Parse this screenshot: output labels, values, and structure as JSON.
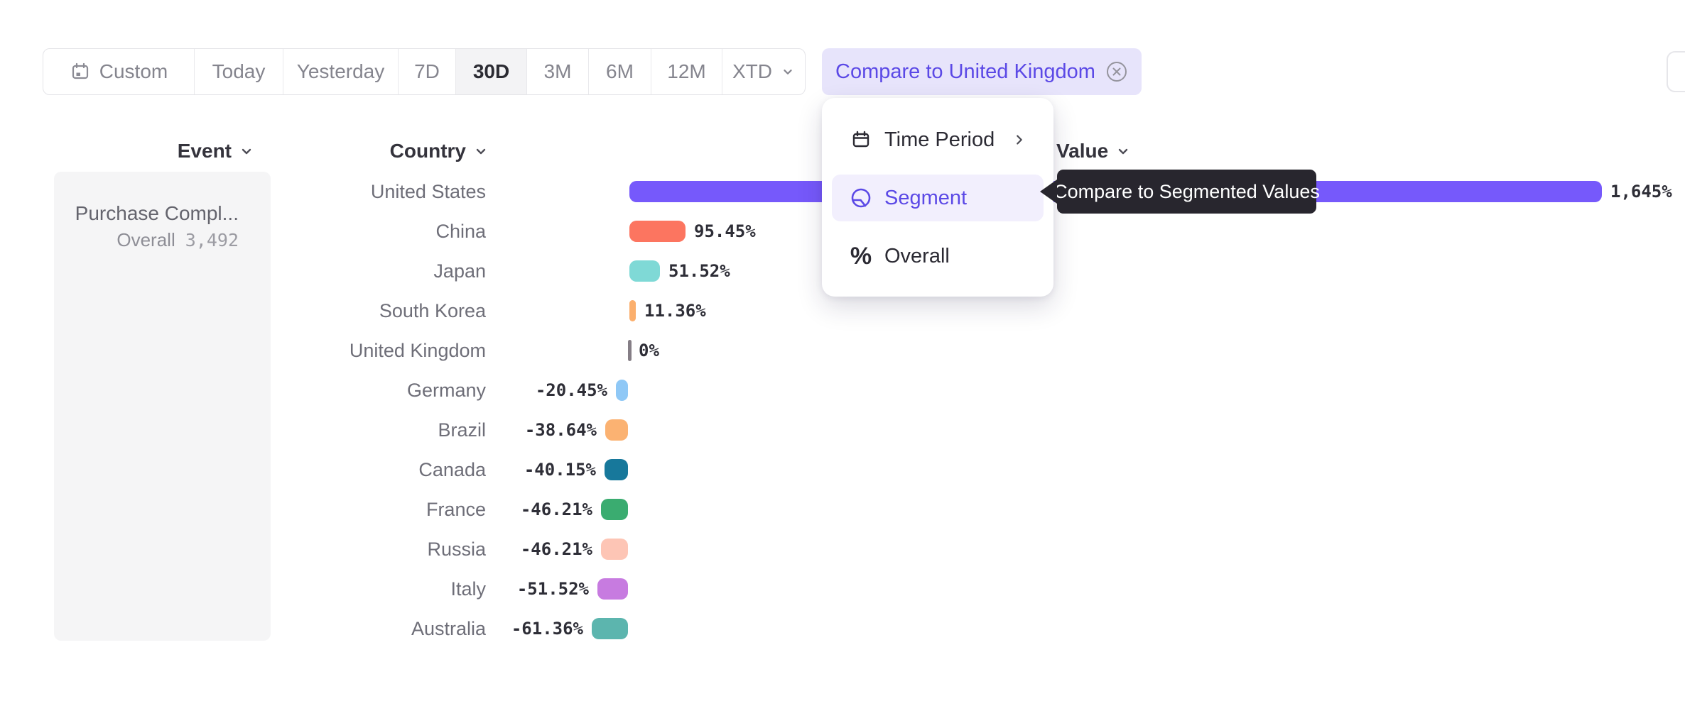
{
  "toolbar": {
    "custom_label": "Custom",
    "ranges": [
      {
        "label": "Today",
        "selected": false
      },
      {
        "label": "Yesterday",
        "selected": false
      },
      {
        "label": "7D",
        "selected": false
      },
      {
        "label": "30D",
        "selected": true
      },
      {
        "label": "3M",
        "selected": false
      },
      {
        "label": "6M",
        "selected": false
      },
      {
        "label": "12M",
        "selected": false
      }
    ],
    "xtd_label": "XTD",
    "compare_chip": {
      "label": "Compare to United Kingdom"
    }
  },
  "columns": {
    "event": "Event",
    "country": "Country",
    "value": "Value"
  },
  "event_panel": {
    "event_name": "Purchase Compl...",
    "overall_label": "Overall",
    "overall_value": "3,492"
  },
  "menu": {
    "items": [
      {
        "label": "Time Period",
        "icon": "calendar-icon",
        "has_submenu": true,
        "selected": false
      },
      {
        "label": "Segment",
        "icon": "segment-icon",
        "has_submenu": false,
        "selected": true
      },
      {
        "label": "Overall",
        "icon": "percent-icon",
        "has_submenu": false,
        "selected": false
      }
    ]
  },
  "tooltip": {
    "text": "Compare to Segmented Values"
  },
  "colors": {
    "accent_purple": "#5b49e6",
    "chip_bg": "#e7e4fb",
    "menu_highlight_bg": "#f2effd",
    "tooltip_bg": "#28262e",
    "selected_segment_bg": "#f3f3f5",
    "axis_tick": "#857e86"
  },
  "chart_data": {
    "type": "bar",
    "orientation": "horizontal",
    "unit": "%",
    "title": "",
    "xlabel": "",
    "ylabel": "",
    "xlim": [
      -62,
      1645
    ],
    "grid": false,
    "baseline_category": "United Kingdom",
    "categories": [
      "United States",
      "China",
      "Japan",
      "South Korea",
      "United Kingdom",
      "Germany",
      "Brazil",
      "Canada",
      "France",
      "Russia",
      "Italy",
      "Australia"
    ],
    "values": [
      1645,
      95.45,
      51.52,
      11.36,
      0,
      -20.45,
      -38.64,
      -40.15,
      -46.21,
      -46.21,
      -51.52,
      -61.36
    ],
    "value_labels": [
      "1,645%",
      "95.45%",
      "51.52%",
      "11.36%",
      "0%",
      "-20.45%",
      "-38.64%",
      "-40.15%",
      "-46.21%",
      "-46.21%",
      "-51.52%",
      "-61.36%"
    ],
    "bar_colors": [
      "#7659fb",
      "#fc7560",
      "#7fd9d6",
      "#fbaf6d",
      "#857e86",
      "#8fc8f6",
      "#fbb272",
      "#17789b",
      "#3aac70",
      "#fdc5b5",
      "#c77be0",
      "#5cb5ae"
    ],
    "dotted_pattern": [
      false,
      false,
      false,
      false,
      false,
      true,
      true,
      false,
      false,
      false,
      false,
      false
    ]
  }
}
